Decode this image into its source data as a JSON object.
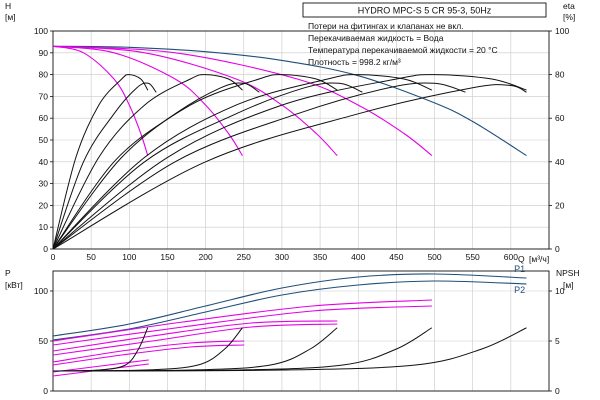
{
  "header": {
    "title": "HYDRO MPC-S 5 CR 95-3, 50Hz",
    "notes": [
      "Потери на фитингах и клапанах не вкл.",
      "Перекачиваемая жидкость = Вода",
      "Температура перекачиваемой жидкости = 20 °C",
      "Плотность = 998.2 кг/м³"
    ]
  },
  "chart_data": [
    {
      "type": "line",
      "panel": "top",
      "ylabel_left": "H",
      "yunit_left": "[м]",
      "ylabel_right": "eta",
      "yunit_right": "[%]",
      "xlabel": "Q",
      "xunit": "[м³/ч]",
      "xlim": [
        0,
        650
      ],
      "xticks": [
        0,
        50,
        100,
        150,
        200,
        250,
        300,
        350,
        400,
        450,
        500,
        550,
        600
      ],
      "ylim_left": [
        0,
        100
      ],
      "yticks_left": [
        0,
        10,
        20,
        30,
        40,
        50,
        60,
        70,
        80,
        90,
        100
      ],
      "ylim_right": [
        0,
        100
      ],
      "yticks_right": [
        0,
        20,
        40,
        60,
        80,
        100
      ],
      "grid": true,
      "series": [
        {
          "group": "head_full",
          "color": "#1f4e79",
          "x": [
            0,
            100,
            200,
            300,
            400,
            500,
            550,
            620
          ],
          "y": [
            93,
            92.5,
            90.5,
            86.5,
            79.5,
            67,
            58.5,
            43
          ]
        },
        {
          "group": "head",
          "color": "#e600e6",
          "x": [
            0,
            40,
            80,
            100,
            115,
            124
          ],
          "y": [
            93,
            90,
            78,
            66,
            53,
            43
          ]
        },
        {
          "group": "head",
          "color": "#e600e6",
          "x": [
            0,
            80,
            160,
            200,
            230,
            248
          ],
          "y": [
            93,
            90,
            78,
            66,
            53,
            43
          ]
        },
        {
          "group": "head",
          "color": "#e600e6",
          "x": [
            0,
            120,
            240,
            300,
            345,
            372
          ],
          "y": [
            93,
            90,
            78,
            66,
            53,
            43
          ]
        },
        {
          "group": "head",
          "color": "#e600e6",
          "x": [
            0,
            160,
            320,
            400,
            460,
            496
          ],
          "y": [
            93,
            90,
            78,
            66,
            53,
            43
          ]
        },
        {
          "group": "efficiency",
          "color": "#111111",
          "x": [
            0,
            30,
            60,
            90,
            100,
            115,
            124
          ],
          "y": [
            0,
            42,
            66,
            78,
            80,
            78,
            73
          ]
        },
        {
          "group": "efficiency",
          "color": "#111111",
          "x": [
            0,
            40,
            80,
            110,
            125,
            135
          ],
          "y": [
            0,
            40,
            62,
            74,
            76,
            72
          ]
        },
        {
          "group": "efficiency",
          "color": "#111111",
          "x": [
            0,
            60,
            120,
            180,
            200,
            230,
            248
          ],
          "y": [
            0,
            42,
            66,
            78,
            80,
            78,
            73
          ]
        },
        {
          "group": "efficiency",
          "color": "#111111",
          "x": [
            0,
            80,
            160,
            220,
            250,
            270
          ],
          "y": [
            0,
            40,
            62,
            74,
            76,
            72
          ]
        },
        {
          "group": "efficiency",
          "color": "#111111",
          "x": [
            0,
            90,
            180,
            270,
            300,
            345,
            372
          ],
          "y": [
            0,
            42,
            66,
            78,
            80,
            78,
            73
          ]
        },
        {
          "group": "efficiency",
          "color": "#111111",
          "x": [
            0,
            120,
            240,
            330,
            375,
            405
          ],
          "y": [
            0,
            40,
            62,
            74,
            76,
            72
          ]
        },
        {
          "group": "efficiency",
          "color": "#111111",
          "x": [
            0,
            120,
            240,
            360,
            400,
            460,
            496
          ],
          "y": [
            0,
            42,
            66,
            78,
            80,
            78,
            73
          ]
        },
        {
          "group": "efficiency",
          "color": "#111111",
          "x": [
            0,
            160,
            320,
            440,
            500,
            540
          ],
          "y": [
            0,
            40,
            62,
            74,
            76,
            72
          ]
        },
        {
          "group": "efficiency",
          "color": "#111111",
          "x": [
            0,
            150,
            300,
            450,
            500,
            575,
            620
          ],
          "y": [
            0,
            42,
            66,
            78,
            80,
            78,
            73
          ]
        },
        {
          "group": "efficiency",
          "color": "#111111",
          "x": [
            0,
            200,
            400,
            550,
            600,
            620
          ],
          "y": [
            0,
            40,
            62,
            74,
            75,
            72
          ]
        }
      ]
    },
    {
      "type": "line",
      "panel": "bottom",
      "ylabel_left": "P",
      "yunit_left": "[кВт]",
      "ylabel_right": "NPSH",
      "yunit_right": "[м]",
      "xlim": [
        0,
        650
      ],
      "ylim_left": [
        0,
        120
      ],
      "yticks_left": [
        0,
        50,
        100
      ],
      "ylim_right": [
        0,
        12
      ],
      "yticks_right": [
        0,
        5,
        10
      ],
      "grid": true,
      "series": [
        {
          "name": "P1",
          "group": "power_total",
          "color": "#1f4e79",
          "label_pos": "upper",
          "x": [
            0,
            100,
            200,
            300,
            400,
            500,
            620
          ],
          "y": [
            55,
            67,
            85,
            103,
            114,
            117,
            113
          ]
        },
        {
          "name": "P2",
          "group": "power_total",
          "color": "#1f4e79",
          "label_pos": "lower",
          "x": [
            0,
            100,
            200,
            300,
            400,
            500,
            620
          ],
          "y": [
            51,
            62,
            79,
            96,
            106,
            110,
            107
          ]
        },
        {
          "group": "power_stage",
          "color": "#e600e6",
          "x": [
            0,
            125
          ],
          "y": [
            15,
            27
          ]
        },
        {
          "group": "power_stage",
          "color": "#e600e6",
          "x": [
            0,
            125
          ],
          "y": [
            19,
            31
          ]
        },
        {
          "group": "power_stage",
          "color": "#e600e6",
          "x": [
            0,
            90,
            180,
            250
          ],
          "y": [
            26,
            36,
            44,
            46
          ]
        },
        {
          "group": "power_stage",
          "color": "#e600e6",
          "x": [
            0,
            90,
            180,
            250
          ],
          "y": [
            29,
            40,
            48,
            50
          ]
        },
        {
          "group": "power_stage",
          "color": "#e600e6",
          "x": [
            0,
            130,
            260,
            372
          ],
          "y": [
            36,
            50,
            64,
            67
          ]
        },
        {
          "group": "power_stage",
          "color": "#e600e6",
          "x": [
            0,
            130,
            260,
            372
          ],
          "y": [
            40,
            55,
            68,
            70
          ]
        },
        {
          "group": "power_stage",
          "color": "#e600e6",
          "x": [
            0,
            170,
            340,
            496
          ],
          "y": [
            46,
            64,
            80,
            85
          ]
        },
        {
          "group": "power_stage",
          "color": "#e600e6",
          "x": [
            0,
            170,
            340,
            496
          ],
          "y": [
            50,
            69,
            85,
            91
          ]
        },
        {
          "group": "npsh",
          "color": "#111111",
          "x": [
            0,
            60,
            95,
            112,
            124
          ],
          "y": [
            2.0,
            2.1,
            2.6,
            4.2,
            6.3
          ]
        },
        {
          "group": "npsh",
          "color": "#111111",
          "x": [
            0,
            120,
            190,
            225,
            248
          ],
          "y": [
            2.0,
            2.1,
            2.6,
            4.2,
            6.3
          ]
        },
        {
          "group": "npsh",
          "color": "#111111",
          "x": [
            0,
            180,
            285,
            337,
            372
          ],
          "y": [
            2.0,
            2.1,
            2.6,
            4.2,
            6.3
          ]
        },
        {
          "group": "npsh",
          "color": "#111111",
          "x": [
            0,
            240,
            380,
            450,
            496
          ],
          "y": [
            2.0,
            2.1,
            2.6,
            4.2,
            6.3
          ]
        },
        {
          "group": "npsh",
          "color": "#111111",
          "x": [
            0,
            300,
            475,
            562,
            620
          ],
          "y": [
            2.0,
            2.1,
            2.6,
            4.2,
            6.3
          ]
        }
      ]
    }
  ]
}
